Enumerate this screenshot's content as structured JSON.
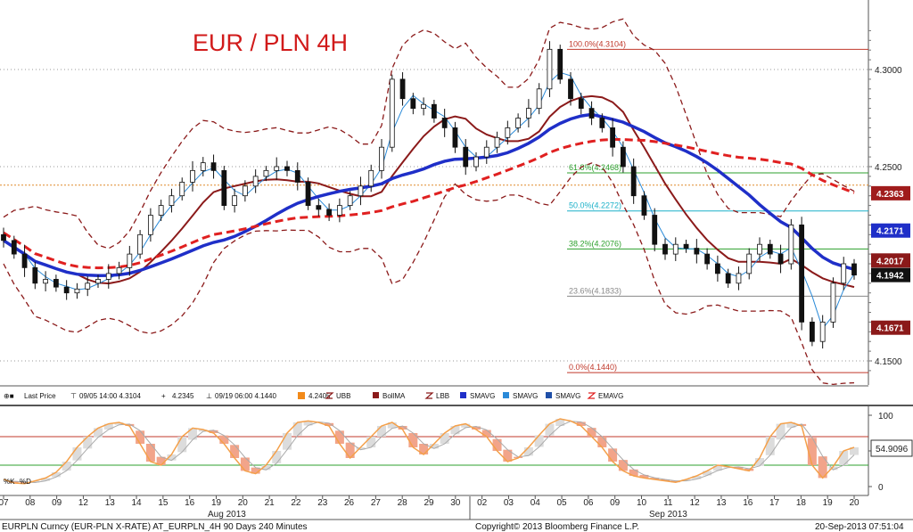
{
  "chart_data": [
    {
      "type": "candlestick",
      "title": "EUR / PLN 4H",
      "ylim": [
        4.138,
        4.322
      ],
      "y_ticks": [
        "4.3000",
        "4.2500",
        "4.1500"
      ],
      "x_ticks": [
        "07",
        "08",
        "09",
        "12",
        "13",
        "14",
        "15",
        "16",
        "19",
        "20",
        "21",
        "22",
        "23",
        "26",
        "27",
        "28",
        "29",
        "30",
        "02",
        "03",
        "04",
        "05",
        "06",
        "09",
        "10",
        "11",
        "12",
        "13",
        "16",
        "17",
        "18",
        "19",
        "20"
      ],
      "month_labels": [
        "Aug 2013",
        "Sep 2013"
      ],
      "closes": [
        4.212,
        4.205,
        4.198,
        4.19,
        4.192,
        4.188,
        4.185,
        4.187,
        4.19,
        4.192,
        4.195,
        4.198,
        4.205,
        4.215,
        4.225,
        4.23,
        4.235,
        4.242,
        4.248,
        4.252,
        4.248,
        4.23,
        4.235,
        4.24,
        4.245,
        4.248,
        4.25,
        4.248,
        4.242,
        4.23,
        4.228,
        4.225,
        4.23,
        4.235,
        4.24,
        4.248,
        4.26,
        4.295,
        4.285,
        4.28,
        4.282,
        4.275,
        4.27,
        4.26,
        4.25,
        4.255,
        4.26,
        4.265,
        4.27,
        4.275,
        4.28,
        4.29,
        4.3104,
        4.295,
        4.285,
        4.28,
        4.275,
        4.27,
        4.26,
        4.25,
        4.235,
        4.225,
        4.21,
        4.205,
        4.21,
        4.208,
        4.205,
        4.2,
        4.195,
        4.19,
        4.195,
        4.205,
        4.21,
        4.205,
        4.2,
        4.22,
        4.17,
        4.16,
        4.17,
        4.19,
        4.2,
        4.1942
      ],
      "ohlc_note": "approximate 4H candles read from the chart; highs/lows spread around closes",
      "series": [
        {
          "name": "Last Price",
          "color": "#111111"
        },
        {
          "name": "UBB",
          "color": "#8b1a1a",
          "style": "dashed"
        },
        {
          "name": "BollMA",
          "color": "#8b1a1a"
        },
        {
          "name": "LBB",
          "color": "#8b1a1a",
          "style": "dashed"
        },
        {
          "name": "SMAVG",
          "color": "#1f2fc8"
        },
        {
          "name": "SMAVG",
          "color": "#2a8ad8"
        },
        {
          "name": "SMAVG",
          "color": "#1f4fa8"
        },
        {
          "name": "EMAVG",
          "color": "#e02020",
          "style": "dashed"
        }
      ],
      "fibonacci": [
        {
          "label": "100.0%(4.3104)",
          "value": 4.3104,
          "color": "#c0392b"
        },
        {
          "label": "61.8%(4.2468)",
          "value": 4.2468,
          "color": "#2ca02c"
        },
        {
          "label": "50.0%(4.2272)",
          "value": 4.2272,
          "color": "#1ab0c8"
        },
        {
          "label": "38.2%(4.2076)",
          "value": 4.2076,
          "color": "#2ca02c"
        },
        {
          "label": "23.6%(4.1833)",
          "value": 4.1833,
          "color": "#888888"
        },
        {
          "label": "0.0%(4.1440)",
          "value": 4.144,
          "color": "#c0392b"
        }
      ],
      "right_badges": [
        {
          "value": "4.2363",
          "color": "#a01c1c"
        },
        {
          "value": "4.2171",
          "color": "#1f2fc8"
        },
        {
          "value": "4.2017",
          "color": "#8b1a1a"
        },
        {
          "value": "4.1942",
          "color": "#111111"
        },
        {
          "value": "4.1671",
          "color": "#8b1a1a"
        }
      ],
      "legend": {
        "last_price": "Last Price",
        "high": "09/05 14:00 4.3104",
        "current": "4.2345",
        "low": "09/19 06:00 4.1440",
        "value": "4.2405",
        "items": [
          "UBB",
          "BollMA",
          "LBB",
          "SMAVG",
          "SMAVG",
          "SMAVG",
          "EMAVG"
        ]
      }
    },
    {
      "type": "line",
      "title": "",
      "ylim": [
        0,
        100
      ],
      "y_ticks": [
        "100",
        "50",
        "0"
      ],
      "current_value": "54.9096",
      "series": [
        {
          "name": "%K",
          "color": "#f4a04a"
        },
        {
          "name": "%D",
          "color": "#aaaaaa"
        }
      ],
      "k_values": [
        10,
        5,
        4,
        8,
        12,
        20,
        35,
        55,
        70,
        82,
        88,
        90,
        85,
        60,
        35,
        30,
        45,
        70,
        82,
        80,
        75,
        60,
        40,
        22,
        18,
        30,
        50,
        75,
        90,
        92,
        90,
        85,
        60,
        40,
        55,
        70,
        85,
        90,
        80,
        55,
        45,
        60,
        75,
        85,
        88,
        80,
        70,
        50,
        35,
        40,
        55,
        72,
        88,
        95,
        92,
        85,
        70,
        55,
        35,
        22,
        15,
        12,
        10,
        8,
        6,
        10,
        15,
        22,
        30,
        28,
        25,
        22,
        40,
        70,
        88,
        90,
        85,
        30,
        12,
        28,
        50,
        55
      ]
    }
  ],
  "footer": {
    "left": "EURPLN Curncy (EUR-PLN X-RATE) AT_EURPLN_4H 90 Days 240 Minutes",
    "center": "Copyright© 2013 Bloomberg Finance L.P.",
    "right": "20-Sep-2013 07:51:04"
  }
}
